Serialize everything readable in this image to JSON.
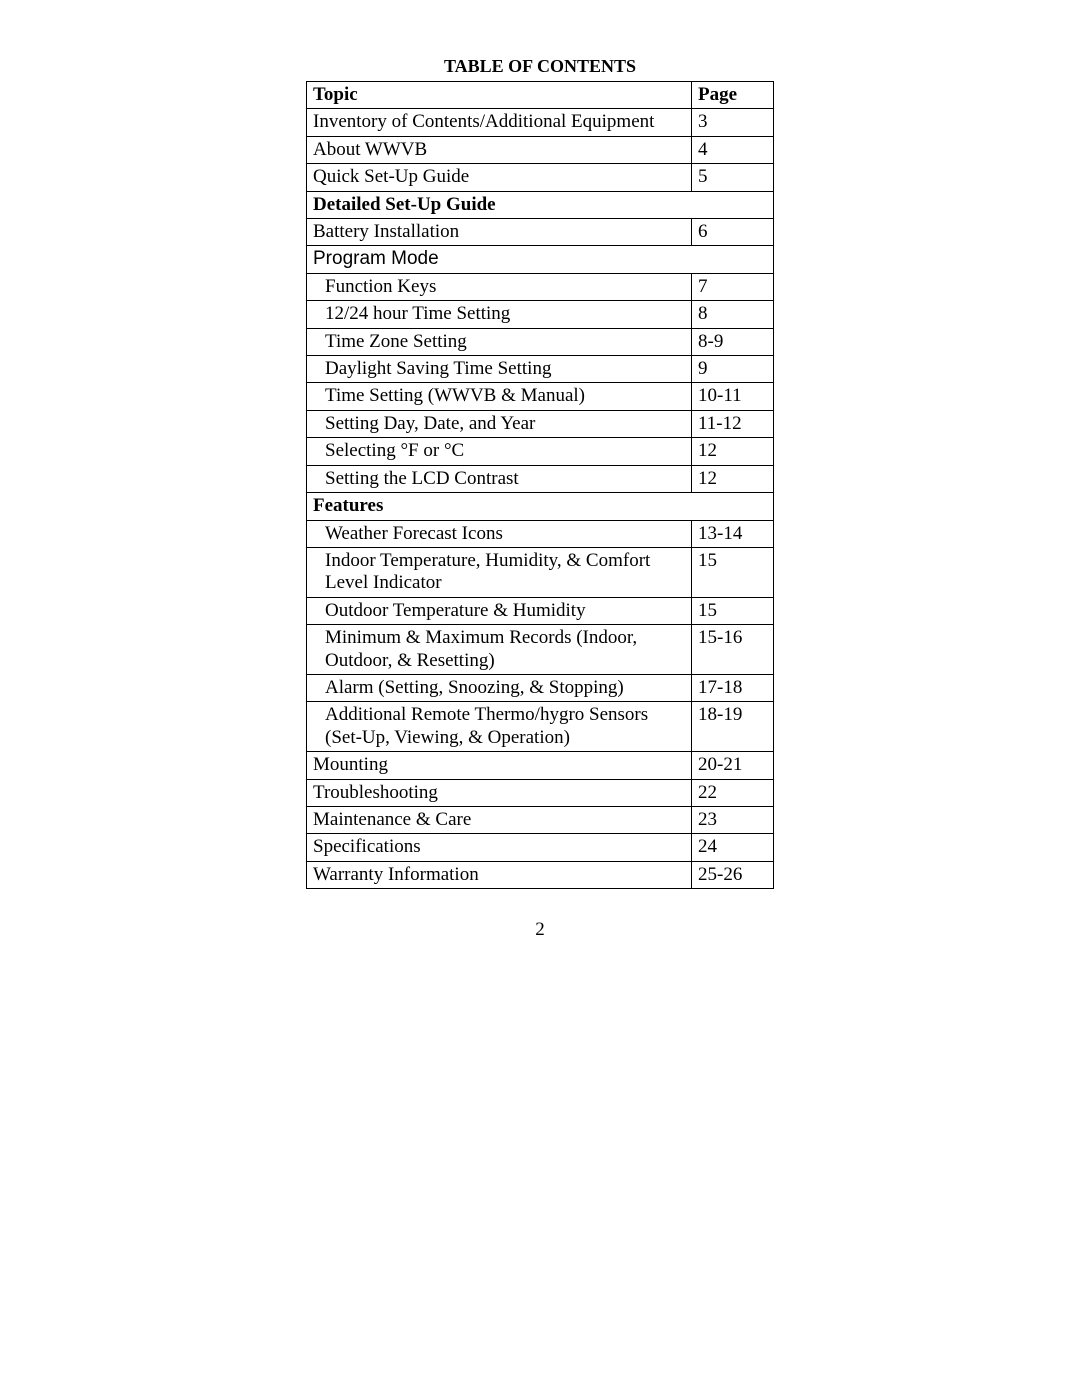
{
  "title": "TABLE OF CONTENTS",
  "columns": {
    "topic": "Topic",
    "page": "Page"
  },
  "rows": [
    {
      "label": "Inventory of Contents/Additional Equipment",
      "page": "3",
      "indent": false
    },
    {
      "label": "About WWVB",
      "page": "4",
      "indent": false
    },
    {
      "label": "Quick Set-Up Guide",
      "page": "5",
      "indent": false
    }
  ],
  "section_detailed": "Detailed Set-Up Guide",
  "rows2": [
    {
      "label": "Battery Installation",
      "page": "6",
      "indent": false
    }
  ],
  "program_mode": "Program Mode",
  "rows3": [
    {
      "label": "Function Keys",
      "page": "7",
      "indent": true
    },
    {
      "label": "12/24 hour Time Setting",
      "page": "8",
      "indent": true
    },
    {
      "label": "Time Zone Setting",
      "page": "8-9",
      "indent": true
    },
    {
      "label": "Daylight Saving Time Setting",
      "page": "9",
      "indent": true
    },
    {
      "label": "Time Setting (WWVB & Manual)",
      "page": "10-11",
      "indent": true
    },
    {
      "label": "Setting Day, Date, and Year",
      "page": "11-12",
      "indent": true
    },
    {
      "label": "Selecting  °F or  °C",
      "page": "12",
      "indent": true
    },
    {
      "label": "Setting the LCD Contrast",
      "page": "12",
      "indent": true
    }
  ],
  "section_features": "Features",
  "rows4": [
    {
      "label": "Weather Forecast Icons",
      "page": "13-14",
      "indent": true
    },
    {
      "label": "Indoor Temperature, Humidity, & Comfort Level Indicator",
      "page": "15",
      "indent": true
    },
    {
      "label": "Outdoor Temperature & Humidity",
      "page": "15",
      "indent": true
    },
    {
      "label": "Minimum & Maximum Records (Indoor, Outdoor, & Resetting)",
      "page": "15-16",
      "indent": true
    },
    {
      "label": "Alarm (Setting, Snoozing, & Stopping)",
      "page": "17-18",
      "indent": true
    },
    {
      "label": "Additional Remote Thermo/hygro Sensors (Set-Up, Viewing, & Operation)",
      "page": "18-19",
      "indent": true
    }
  ],
  "rows5": [
    {
      "label": "Mounting",
      "page": "20-21",
      "indent": false
    },
    {
      "label": "Troubleshooting",
      "page": "22",
      "indent": false
    },
    {
      "label": "Maintenance & Care",
      "page": "23",
      "indent": false
    },
    {
      "label": "Specifications",
      "page": "24",
      "indent": false
    },
    {
      "label": "Warranty Information",
      "page": "25-26",
      "indent": false
    }
  ],
  "page_number": "2"
}
